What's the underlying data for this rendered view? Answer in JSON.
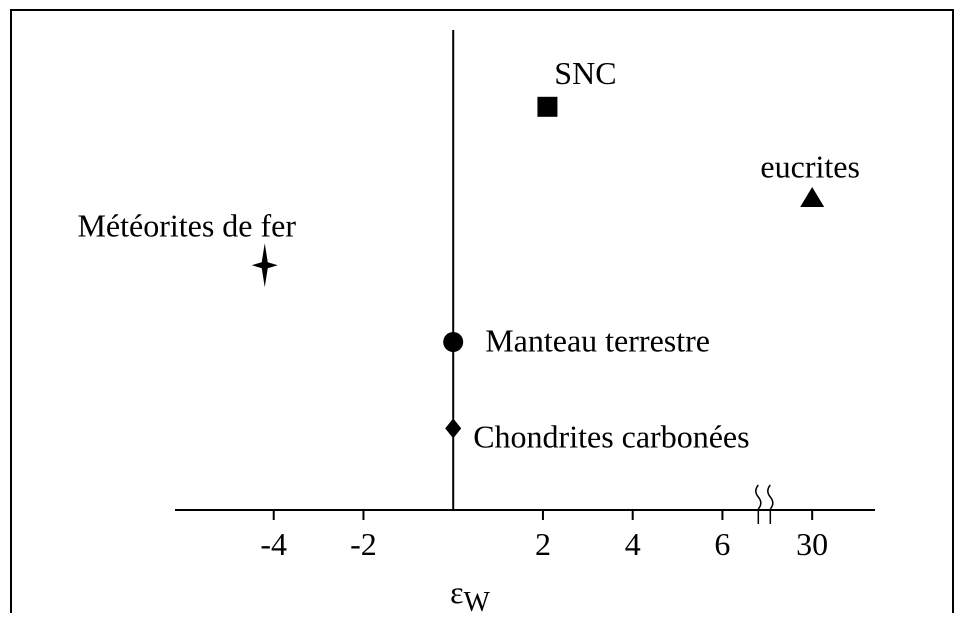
{
  "chart_data": {
    "type": "scatter",
    "xlabel": {
      "symbol": "ε",
      "subscript": "W"
    },
    "xlim": [
      -6.2,
      31.4
    ],
    "xticks": [
      -4,
      -2,
      2,
      4,
      6,
      30
    ],
    "xbreak": [
      6,
      30
    ],
    "ylim": [
      0,
      10
    ],
    "points": [
      {
        "label": "SNC",
        "x": 2.1,
        "y": 8.4,
        "marker": "square"
      },
      {
        "label": "eucrites",
        "x": 30,
        "y": 6.5,
        "marker": "triangle"
      },
      {
        "label": "Météorites de fer",
        "x": -4.2,
        "y": 5.1,
        "marker": "star"
      },
      {
        "label": "Manteau terrestre",
        "x": 0,
        "y": 3.5,
        "marker": "circle"
      },
      {
        "label": "Chondrites carbonées",
        "x": 0,
        "y": 1.7,
        "marker": "diamond"
      }
    ],
    "color": "#000000"
  }
}
